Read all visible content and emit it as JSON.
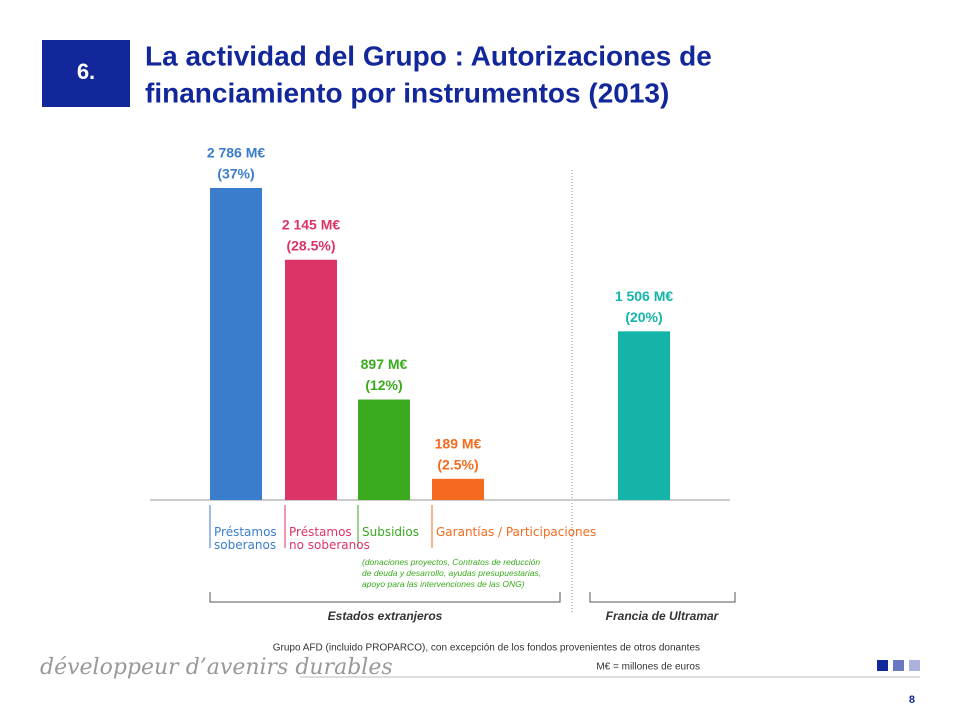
{
  "section": "6.",
  "title_lines": [
    "La actividad del Grupo : Autorizaciones de",
    "financiamiento por instrumentos (2013)"
  ],
  "chart_data": {
    "type": "bar",
    "categories": [
      "Préstamos\nsoberanos",
      "Préstamos\nno soberanos",
      "Subsidios",
      "Garantías / Participaciones",
      "Francia de Ultramar"
    ],
    "values": [
      2786,
      2145,
      897,
      189,
      1506
    ],
    "value_labels": [
      "2 786 M€",
      "2 145 M€",
      "897 M€",
      "189 M€",
      "1 506 M€"
    ],
    "share_labels": [
      "(37%)",
      "(28.5%)",
      "(12%)",
      "(2.5%)",
      "(20%)"
    ],
    "colors": [
      "#3a7dcc",
      "#dc3466",
      "#3aaa1e",
      "#f46a1e",
      "#14b5a8"
    ],
    "label_colors": [
      "#3a7dcc",
      "#dc3466",
      "#3aaa1e",
      "#f46a1e",
      "#14b5a8"
    ],
    "subsidies_note": "(donaciones proyectos, Contratos de reducción\nde deuda y desarrollo, ayudas presupuestarias,\napoyo para las intervenciones de las ONG)",
    "group_labels": [
      "Estados extranjeros",
      "Francia de Ultramar"
    ],
    "ylim": [
      0,
      3000
    ]
  },
  "footer": {
    "slogan": "développeur d’avenirs durables",
    "note_lines": [
      "Grupo AFD (incluido PROPARCO), con excepción de los fondos provenientes de otros donantes",
      "M€ = millones de euros"
    ],
    "page": "8"
  }
}
